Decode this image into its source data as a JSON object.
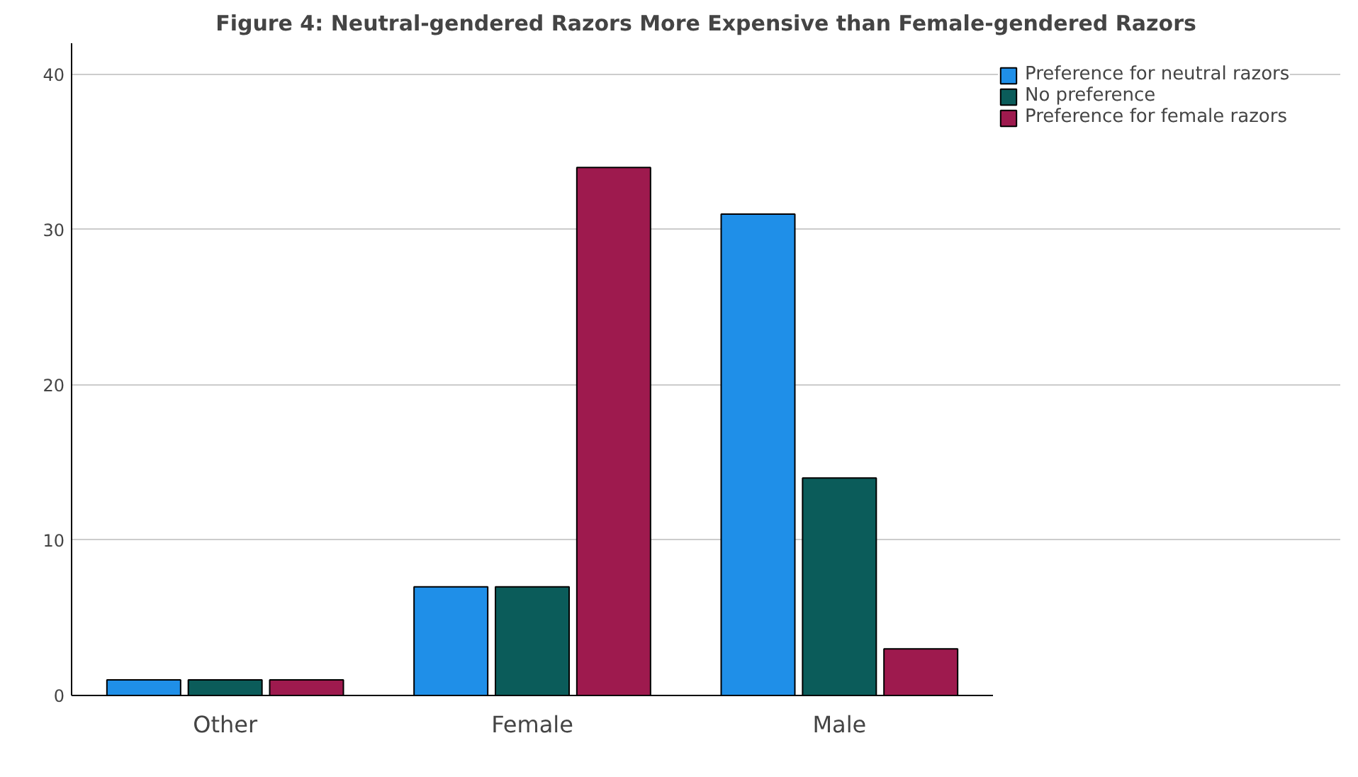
{
  "chart_data": {
    "type": "bar",
    "title": "Figure 4: Neutral-gendered Razors More Expensive than Female-gendered Razors",
    "categories": [
      "Other",
      "Female",
      "Male"
    ],
    "series": [
      {
        "name": "Preference for neutral razors",
        "color": "#1f8fe8",
        "values": [
          1,
          7,
          31
        ]
      },
      {
        "name": "No preference",
        "color": "#0b5c5a",
        "values": [
          1,
          7,
          14
        ]
      },
      {
        "name": "Preference for female razors",
        "color": "#9e1a4e",
        "values": [
          1,
          34,
          3
        ]
      }
    ],
    "ylim": [
      0,
      42
    ],
    "yticks": [
      0,
      10,
      20,
      30,
      40
    ],
    "grid": "y",
    "legend": "right"
  }
}
